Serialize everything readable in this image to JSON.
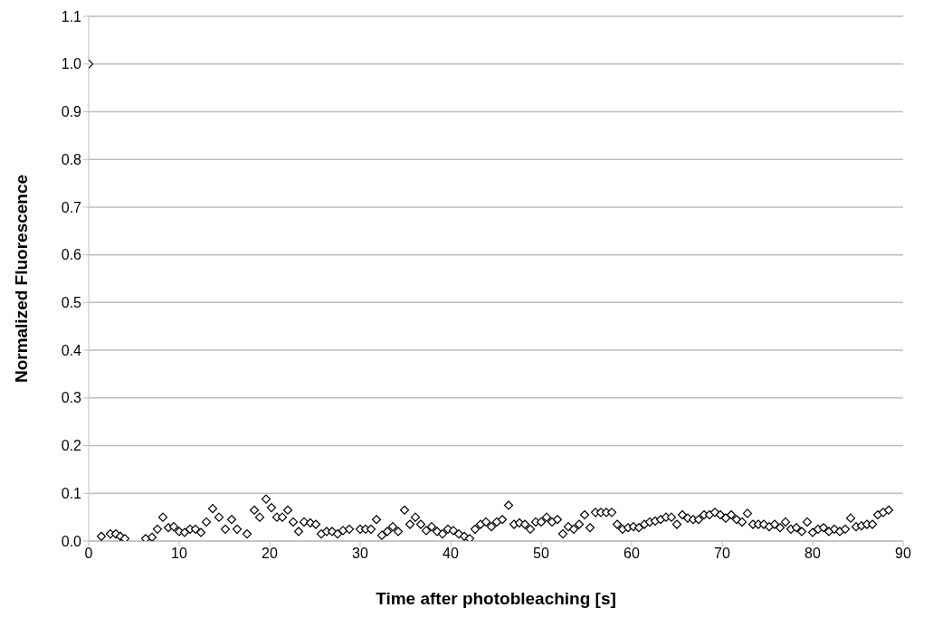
{
  "chart_data": {
    "type": "scatter",
    "xlabel": "Time after photobleaching [s]",
    "ylabel": "Normalized Fluorescence",
    "x": [
      0,
      1.4,
      2.4,
      3.0,
      3.5,
      4.0,
      6.3,
      7.0,
      7.6,
      8.2,
      8.8,
      9.4,
      10.0,
      10.6,
      11.2,
      11.8,
      12.4,
      13.0,
      13.7,
      14.4,
      15.1,
      15.8,
      16.4,
      17.5,
      18.3,
      18.9,
      19.6,
      20.2,
      20.8,
      21.4,
      22.0,
      22.6,
      23.2,
      23.8,
      24.5,
      25.1,
      25.7,
      26.3,
      26.9,
      27.5,
      28.1,
      28.8,
      30.0,
      30.6,
      31.2,
      31.8,
      32.4,
      33.0,
      33.6,
      34.2,
      34.9,
      35.5,
      36.1,
      36.7,
      37.3,
      37.9,
      38.5,
      39.1,
      39.7,
      40.3,
      40.9,
      41.5,
      42.1,
      42.7,
      43.3,
      43.9,
      44.5,
      45.1,
      45.7,
      46.4,
      47.0,
      47.6,
      48.2,
      48.8,
      49.4,
      50.0,
      50.6,
      51.2,
      51.8,
      52.4,
      53.0,
      53.6,
      54.2,
      54.8,
      55.4,
      56.0,
      56.6,
      57.2,
      57.8,
      58.4,
      59.0,
      59.6,
      60.2,
      60.8,
      61.4,
      62.0,
      62.6,
      63.2,
      63.8,
      64.4,
      65.0,
      65.6,
      66.2,
      66.8,
      67.4,
      68.0,
      68.6,
      69.2,
      69.8,
      70.4,
      71.0,
      71.6,
      72.2,
      72.8,
      73.4,
      74.0,
      74.6,
      75.2,
      75.8,
      76.4,
      77.0,
      77.6,
      78.2,
      78.8,
      79.4,
      80.0,
      80.6,
      81.2,
      81.8,
      82.4,
      83.0,
      83.6,
      84.2,
      84.8,
      85.4,
      86.0,
      86.6,
      87.2,
      87.8,
      88.4
    ],
    "values": [
      1.0,
      0.01,
      0.015,
      0.015,
      0.01,
      0.005,
      0.005,
      0.008,
      0.025,
      0.05,
      0.028,
      0.03,
      0.02,
      0.018,
      0.025,
      0.025,
      0.018,
      0.04,
      0.068,
      0.05,
      0.025,
      0.045,
      0.025,
      0.015,
      0.065,
      0.05,
      0.088,
      0.07,
      0.05,
      0.05,
      0.065,
      0.04,
      0.02,
      0.04,
      0.038,
      0.035,
      0.015,
      0.02,
      0.02,
      0.015,
      0.022,
      0.025,
      0.025,
      0.025,
      0.025,
      0.045,
      0.012,
      0.02,
      0.03,
      0.02,
      0.065,
      0.035,
      0.05,
      0.035,
      0.022,
      0.03,
      0.02,
      0.015,
      0.025,
      0.022,
      0.015,
      0.01,
      0.005,
      0.025,
      0.035,
      0.04,
      0.03,
      0.04,
      0.045,
      0.075,
      0.035,
      0.038,
      0.035,
      0.025,
      0.04,
      0.04,
      0.05,
      0.04,
      0.045,
      0.015,
      0.03,
      0.025,
      0.035,
      0.055,
      0.028,
      0.06,
      0.06,
      0.06,
      0.06,
      0.035,
      0.025,
      0.028,
      0.03,
      0.028,
      0.035,
      0.04,
      0.042,
      0.045,
      0.05,
      0.05,
      0.035,
      0.055,
      0.048,
      0.045,
      0.045,
      0.055,
      0.055,
      0.06,
      0.055,
      0.048,
      0.055,
      0.045,
      0.04,
      0.058,
      0.035,
      0.035,
      0.035,
      0.03,
      0.035,
      0.028,
      0.04,
      0.025,
      0.028,
      0.02,
      0.04,
      0.018,
      0.025,
      0.028,
      0.02,
      0.025,
      0.02,
      0.025,
      0.048,
      0.03,
      0.032,
      0.035,
      0.035,
      0.055,
      0.06,
      0.065
    ],
    "color": "#000000",
    "marker": "diamond",
    "grid": "y",
    "xlim": [
      0,
      90
    ],
    "xticks": [
      0,
      10,
      20,
      30,
      40,
      50,
      60,
      70,
      80,
      90
    ],
    "ylim": [
      0,
      1.1
    ],
    "yticks": [
      {
        "value": 0,
        "label": "0.0"
      },
      {
        "value": 0.1,
        "label": "0.1"
      },
      {
        "value": 0.2,
        "label": "0.2"
      },
      {
        "value": 0.3,
        "label": "0.3"
      },
      {
        "value": 0.4,
        "label": "0.4"
      },
      {
        "value": 0.5,
        "label": "0.5"
      },
      {
        "value": 0.6,
        "label": "0.6"
      },
      {
        "value": 0.7,
        "label": "0.7"
      },
      {
        "value": 0.8,
        "label": "0.8"
      },
      {
        "value": 0.9,
        "label": "0.9"
      },
      {
        "value": 1,
        "label": "1.0"
      },
      {
        "value": 1.1,
        "label": "1.1"
      }
    ]
  }
}
